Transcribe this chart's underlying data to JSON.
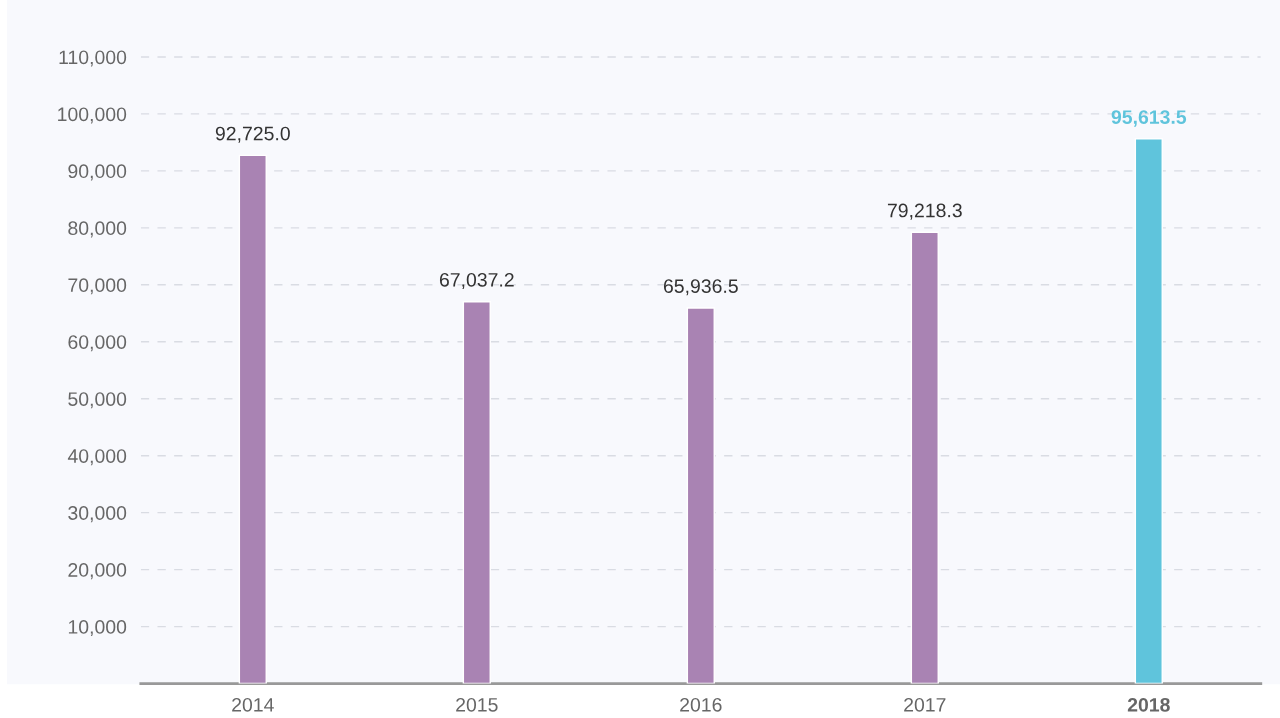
{
  "chart_data": {
    "type": "bar",
    "categories": [
      "2014",
      "2015",
      "2016",
      "2017",
      "2018"
    ],
    "values": [
      92725.0,
      67037.2,
      65936.5,
      79218.3,
      95613.5
    ],
    "colors": [
      "#a983b3",
      "#a983b3",
      "#a983b3",
      "#a983b3",
      "#5fc4dc"
    ],
    "value_labels": [
      "92,725.0",
      "67,037.2",
      "65,936.5",
      "79,218.3",
      "95,613.5"
    ],
    "ylim": [
      0,
      120000
    ],
    "yticks": [
      {
        "value": 10000,
        "label": "10,000"
      },
      {
        "value": 20000,
        "label": "20,000"
      },
      {
        "value": 30000,
        "label": "30,000"
      },
      {
        "value": 40000,
        "label": "40,000"
      },
      {
        "value": 50000,
        "label": "50,000"
      },
      {
        "value": 60000,
        "label": "60,000"
      },
      {
        "value": 70000,
        "label": "70,000"
      },
      {
        "value": 80000,
        "label": "80,000"
      },
      {
        "value": 90000,
        "label": "90,000"
      },
      {
        "value": 100000,
        "label": "100,000"
      },
      {
        "value": 110000,
        "label": "110,000"
      }
    ],
    "grid": "y"
  }
}
